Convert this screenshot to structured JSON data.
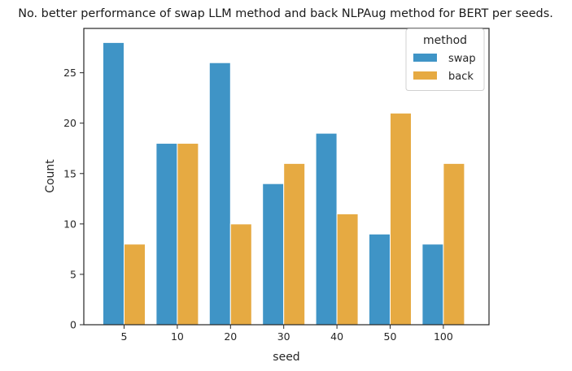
{
  "chart_data": {
    "type": "bar",
    "title": "No. better performance of swap LLM method and back NLPAug method for BERT per seeds.",
    "xlabel": "seed",
    "ylabel": "Count",
    "categories": [
      "5",
      "10",
      "20",
      "30",
      "40",
      "50",
      "100"
    ],
    "series": [
      {
        "name": "swap",
        "color": "#3f94c6",
        "values": [
          28,
          18,
          26,
          14,
          19,
          9,
          8
        ]
      },
      {
        "name": "back",
        "color": "#e6aa42",
        "values": [
          8,
          18,
          10,
          16,
          11,
          21,
          16
        ]
      }
    ],
    "ylim": [
      0,
      29.4
    ],
    "yticks": [
      0,
      5,
      10,
      15,
      20,
      25
    ],
    "grid": false,
    "legend": {
      "title": "method",
      "placement": "top-right"
    }
  }
}
